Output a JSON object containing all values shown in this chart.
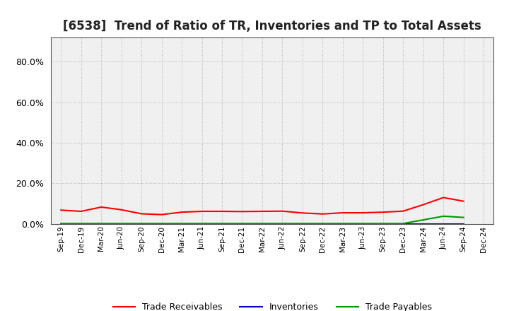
{
  "title": "[6538]  Trend of Ratio of TR, Inventories and TP to Total Assets",
  "x_labels": [
    "Sep-19",
    "Dec-19",
    "Mar-20",
    "Jun-20",
    "Sep-20",
    "Dec-20",
    "Mar-21",
    "Jun-21",
    "Sep-21",
    "Dec-21",
    "Mar-22",
    "Jun-22",
    "Sep-22",
    "Dec-22",
    "Mar-23",
    "Jun-23",
    "Sep-23",
    "Dec-23",
    "Mar-24",
    "Jun-24",
    "Sep-24",
    "Dec-24"
  ],
  "trade_receivables": [
    0.068,
    0.062,
    0.083,
    0.07,
    0.05,
    0.046,
    0.058,
    0.062,
    0.062,
    0.061,
    0.062,
    0.063,
    0.054,
    0.049,
    0.055,
    0.055,
    0.058,
    0.063,
    0.095,
    0.13,
    0.112,
    null
  ],
  "inventories": [
    0.001,
    0.001,
    0.001,
    0.001,
    0.001,
    0.001,
    0.001,
    0.001,
    0.001,
    0.001,
    0.001,
    0.001,
    0.001,
    0.001,
    0.001,
    0.001,
    0.001,
    0.001,
    0.001,
    0.001,
    0.001,
    null
  ],
  "trade_payables": [
    0.002,
    0.002,
    0.002,
    0.002,
    0.002,
    0.002,
    0.002,
    0.002,
    0.002,
    0.002,
    0.002,
    0.002,
    0.002,
    0.002,
    0.002,
    0.002,
    0.002,
    0.002,
    0.02,
    0.038,
    0.032,
    null
  ],
  "tr_color": "#ff0000",
  "inv_color": "#0000cc",
  "tp_color": "#009900",
  "ylim": [
    0.0,
    0.92
  ],
  "yticks": [
    0.0,
    0.2,
    0.4,
    0.6,
    0.8
  ],
  "plot_bg_color": "#f0f0f0",
  "fig_bg_color": "#ffffff",
  "grid_color": "#888888",
  "title_fontsize": 12,
  "legend_labels": [
    "Trade Receivables",
    "Inventories",
    "Trade Payables"
  ]
}
